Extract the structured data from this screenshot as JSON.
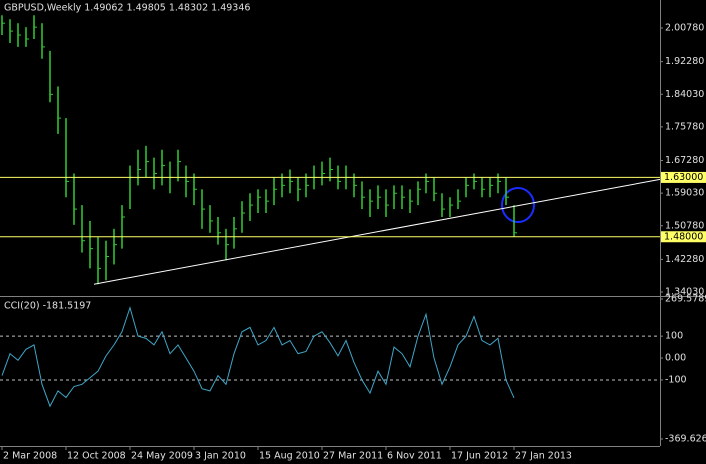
{
  "chart_data": [
    {
      "type": "hlc",
      "title": "GBPUSD,Weekly  1.49062 1.49805 1.48302 1.49346",
      "color": "#33cc33",
      "x": [
        0,
        4,
        8,
        12,
        16,
        20,
        24,
        28,
        32,
        36,
        40,
        44,
        48,
        52,
        56,
        60,
        64,
        68,
        72,
        76,
        80,
        84,
        88,
        92,
        96,
        100,
        104,
        108,
        112,
        116,
        120,
        124,
        128,
        132,
        136,
        140,
        144,
        148,
        152,
        156,
        160,
        164,
        168,
        172,
        176,
        180,
        184,
        188,
        192,
        196,
        200,
        204,
        208,
        212,
        216,
        220,
        224,
        228,
        232,
        236,
        240,
        244,
        248,
        252,
        256
      ],
      "xlim": [
        -1,
        329
      ],
      "high": [
        2.04,
        2.03,
        2.02,
        2.01,
        2.04,
        2.02,
        1.95,
        1.86,
        1.78,
        1.64,
        1.56,
        1.52,
        1.48,
        1.47,
        1.5,
        1.56,
        1.66,
        1.7,
        1.71,
        1.68,
        1.7,
        1.67,
        1.7,
        1.66,
        1.64,
        1.6,
        1.56,
        1.53,
        1.5,
        1.53,
        1.57,
        1.59,
        1.6,
        1.6,
        1.63,
        1.64,
        1.65,
        1.63,
        1.64,
        1.66,
        1.67,
        1.68,
        1.66,
        1.66,
        1.64,
        1.62,
        1.6,
        1.61,
        1.6,
        1.61,
        1.61,
        1.6,
        1.62,
        1.64,
        1.63,
        1.59,
        1.58,
        1.6,
        1.63,
        1.64,
        1.63,
        1.63,
        1.64,
        1.63,
        1.56
      ],
      "low": [
        1.99,
        1.97,
        1.96,
        1.96,
        1.98,
        1.93,
        1.82,
        1.74,
        1.58,
        1.51,
        1.44,
        1.4,
        1.36,
        1.37,
        1.41,
        1.45,
        1.55,
        1.61,
        1.63,
        1.6,
        1.61,
        1.59,
        1.62,
        1.58,
        1.56,
        1.5,
        1.49,
        1.46,
        1.42,
        1.45,
        1.49,
        1.52,
        1.54,
        1.54,
        1.56,
        1.58,
        1.59,
        1.57,
        1.58,
        1.6,
        1.61,
        1.62,
        1.6,
        1.6,
        1.58,
        1.55,
        1.53,
        1.55,
        1.53,
        1.55,
        1.55,
        1.54,
        1.56,
        1.59,
        1.57,
        1.53,
        1.53,
        1.55,
        1.58,
        1.6,
        1.58,
        1.58,
        1.59,
        1.56,
        1.48
      ],
      "close": [
        2.02,
        2.0,
        1.99,
        1.98,
        2.01,
        1.96,
        1.84,
        1.78,
        1.62,
        1.55,
        1.47,
        1.45,
        1.4,
        1.43,
        1.46,
        1.53,
        1.63,
        1.65,
        1.67,
        1.64,
        1.66,
        1.63,
        1.67,
        1.62,
        1.6,
        1.55,
        1.52,
        1.49,
        1.46,
        1.5,
        1.54,
        1.56,
        1.58,
        1.57,
        1.6,
        1.61,
        1.62,
        1.6,
        1.61,
        1.63,
        1.64,
        1.65,
        1.62,
        1.63,
        1.61,
        1.58,
        1.57,
        1.58,
        1.56,
        1.59,
        1.58,
        1.57,
        1.6,
        1.62,
        1.59,
        1.55,
        1.56,
        1.57,
        1.61,
        1.62,
        1.6,
        1.61,
        1.62,
        1.58,
        1.49
      ],
      "ylim": [
        1.3302,
        2.0786
      ],
      "yticks": [
        {
          "value": 2.0078,
          "label": "2.00780"
        },
        {
          "value": 1.9228,
          "label": "1.92280"
        },
        {
          "value": 1.8403,
          "label": "1.84030"
        },
        {
          "value": 1.7578,
          "label": "1.75780"
        },
        {
          "value": 1.6728,
          "label": "1.67280"
        },
        {
          "value": 1.5903,
          "label": "1.59030"
        },
        {
          "value": 1.5078,
          "label": "1.50780"
        },
        {
          "value": 1.4228,
          "label": "1.42280"
        },
        {
          "value": 1.3403,
          "label": "1.34030"
        }
      ],
      "hlines": [
        {
          "value": 1.63,
          "label": "1.63000"
        },
        {
          "value": 1.48,
          "label": "1.48000"
        }
      ],
      "hline_color": "#ffff66",
      "trendline": {
        "x": [
          46,
          329
        ],
        "y": [
          1.36,
          1.625
        ]
      }
    },
    {
      "type": "line",
      "title": "CCI(20) -181.5197",
      "color": "#3fa6c8",
      "x": [
        0,
        4,
        8,
        12,
        16,
        20,
        24,
        28,
        32,
        36,
        40,
        44,
        48,
        52,
        56,
        60,
        64,
        68,
        72,
        76,
        80,
        84,
        88,
        92,
        96,
        100,
        104,
        108,
        112,
        116,
        120,
        124,
        128,
        132,
        136,
        140,
        144,
        148,
        152,
        156,
        160,
        164,
        168,
        172,
        176,
        180,
        184,
        188,
        192,
        196,
        200,
        204,
        208,
        212,
        216,
        220,
        224,
        228,
        232,
        236,
        240,
        244,
        248,
        252,
        256
      ],
      "xlim": [
        -1,
        329
      ],
      "values": [
        -80,
        20,
        -10,
        40,
        60,
        -120,
        -220,
        -150,
        -180,
        -130,
        -120,
        -90,
        -60,
        10,
        60,
        120,
        230,
        100,
        90,
        60,
        120,
        20,
        60,
        0,
        -60,
        -140,
        -150,
        -80,
        -120,
        20,
        120,
        140,
        60,
        80,
        140,
        60,
        80,
        20,
        30,
        100,
        120,
        70,
        10,
        80,
        -20,
        -100,
        -160,
        -60,
        -120,
        50,
        20,
        -40,
        100,
        200,
        0,
        -120,
        -40,
        60,
        100,
        190,
        80,
        60,
        90,
        -100,
        -182
      ],
      "ylim": [
        -369.6264,
        269.5789
      ],
      "yticks": [
        269.5789,
        100,
        {
          "value": 0,
          "label": "0.00"
        },
        -100,
        -369.6264
      ],
      "levels": [
        100,
        -100
      ],
      "xticks": [
        {
          "value": 0,
          "label": "2 Mar 2008"
        },
        {
          "value": 32,
          "label": "12 Oct 2008"
        },
        {
          "value": 64,
          "label": "24 May 2009"
        },
        {
          "value": 96,
          "label": "3 Jan 2010"
        },
        {
          "value": 128,
          "label": "15 Aug 2010"
        },
        {
          "value": 160,
          "label": "27 Mar 2011"
        },
        {
          "value": 192,
          "label": "6 Nov 2011"
        },
        {
          "value": 224,
          "label": "17 Jun 2012"
        },
        {
          "value": 256,
          "label": "27 Jan 2013"
        }
      ]
    }
  ]
}
